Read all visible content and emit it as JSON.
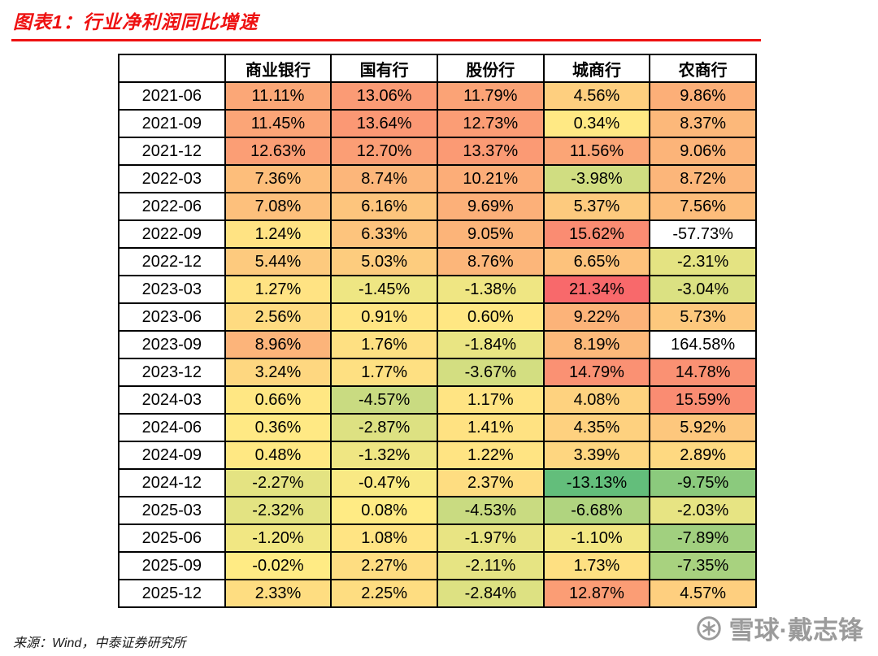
{
  "page": {
    "title": "图表1：行业净利润同比增速",
    "source": "来源：Wind，中泰证券研究所",
    "watermark": "雪球·戴志锋"
  },
  "chart_data": {
    "type": "heatmap",
    "title": "行业净利润同比增速",
    "unit": "%",
    "columns": [
      "商业银行",
      "国有行",
      "股份行",
      "城商行",
      "农商行"
    ],
    "rows": [
      "2021-06",
      "2021-09",
      "2021-12",
      "2022-03",
      "2022-06",
      "2022-09",
      "2022-12",
      "2023-03",
      "2023-06",
      "2023-09",
      "2023-12",
      "2024-03",
      "2024-06",
      "2024-09",
      "2024-12",
      "2025-03",
      "2025-06",
      "2025-09",
      "2025-12"
    ],
    "values": [
      [
        11.11,
        13.06,
        11.79,
        4.56,
        9.86
      ],
      [
        11.45,
        13.64,
        12.73,
        0.34,
        8.37
      ],
      [
        12.63,
        12.7,
        13.37,
        11.56,
        9.06
      ],
      [
        7.36,
        8.74,
        10.21,
        -3.98,
        8.72
      ],
      [
        7.08,
        6.16,
        9.69,
        5.37,
        7.56
      ],
      [
        1.24,
        6.33,
        9.05,
        15.62,
        -57.73
      ],
      [
        5.44,
        5.03,
        8.76,
        6.65,
        -2.31
      ],
      [
        1.27,
        -1.45,
        -1.38,
        21.34,
        -3.04
      ],
      [
        2.56,
        0.91,
        0.6,
        9.22,
        5.73
      ],
      [
        8.96,
        1.76,
        -1.84,
        8.19,
        164.58
      ],
      [
        3.24,
        1.77,
        -3.67,
        14.79,
        14.78
      ],
      [
        0.66,
        -4.57,
        1.17,
        4.08,
        15.59
      ],
      [
        0.36,
        -2.87,
        1.41,
        4.35,
        5.92
      ],
      [
        0.48,
        -1.32,
        1.22,
        3.39,
        2.89
      ],
      [
        -2.27,
        -0.47,
        2.37,
        -13.13,
        -9.75
      ],
      [
        -2.32,
        0.08,
        -4.53,
        -6.68,
        -2.03
      ],
      [
        -1.2,
        1.08,
        -1.97,
        -1.1,
        -7.89
      ],
      [
        -0.02,
        2.27,
        -2.11,
        1.73,
        -7.35
      ],
      [
        2.33,
        2.25,
        -2.84,
        12.87,
        4.57
      ]
    ],
    "colorscale": {
      "min": -13.13,
      "mid": 0,
      "max": 21.34,
      "min_color": "#63BE7B",
      "mid_color": "#FFEB84",
      "max_color": "#F8696B",
      "excluded_color": "#FFFFFF"
    },
    "layout": {
      "grid": "on",
      "legend": "none"
    }
  }
}
